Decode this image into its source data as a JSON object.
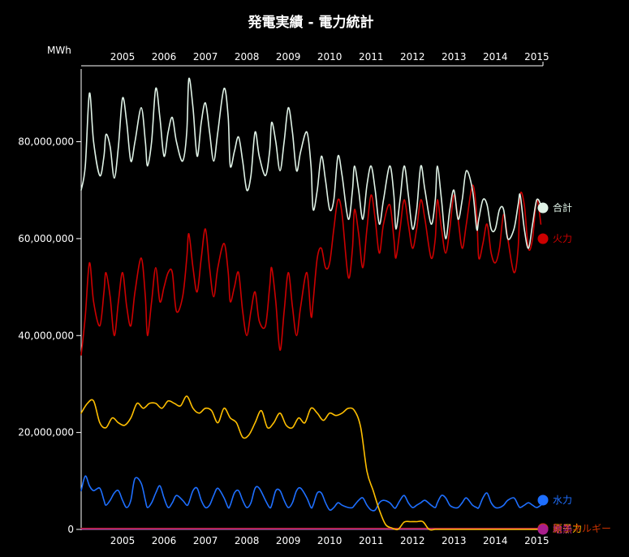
{
  "chart_data": {
    "type": "line",
    "title": "発電実績 - 電力統計",
    "ylabel": "MWh",
    "xlabel": "",
    "xlim": [
      2004.0,
      2015.15
    ],
    "ylim": [
      0,
      95000000
    ],
    "x_ticks": [
      "2005",
      "2006",
      "2007",
      "2008",
      "2009",
      "2010",
      "2011",
      "2012",
      "2013",
      "2014",
      "2015"
    ],
    "y_ticks": [
      "0",
      "20,000,000",
      "40,000,000",
      "60,000,000",
      "80,000,000"
    ],
    "y_tick_values": [
      0,
      20000000,
      40000000,
      60000000,
      80000000
    ],
    "grid": false,
    "legend_placement": "right-end",
    "series": [
      {
        "name": "合計",
        "color": "#dff2e6",
        "x": [
          2004.0,
          2004.1,
          2004.2,
          2004.3,
          2004.45,
          2004.55,
          2004.6,
          2004.7,
          2004.8,
          2004.9,
          2005.0,
          2005.1,
          2005.2,
          2005.3,
          2005.45,
          2005.55,
          2005.6,
          2005.7,
          2005.8,
          2005.9,
          2006.0,
          2006.1,
          2006.2,
          2006.3,
          2006.45,
          2006.55,
          2006.6,
          2006.7,
          2006.8,
          2006.9,
          2007.0,
          2007.1,
          2007.2,
          2007.3,
          2007.45,
          2007.55,
          2007.6,
          2007.7,
          2007.8,
          2007.9,
          2008.0,
          2008.1,
          2008.2,
          2008.3,
          2008.45,
          2008.55,
          2008.6,
          2008.7,
          2008.8,
          2008.9,
          2009.0,
          2009.1,
          2009.2,
          2009.3,
          2009.45,
          2009.55,
          2009.6,
          2009.7,
          2009.8,
          2009.9,
          2010.0,
          2010.1,
          2010.2,
          2010.3,
          2010.45,
          2010.55,
          2010.6,
          2010.7,
          2010.8,
          2010.9,
          2011.0,
          2011.1,
          2011.2,
          2011.3,
          2011.45,
          2011.55,
          2011.6,
          2011.7,
          2011.8,
          2011.9,
          2012.0,
          2012.1,
          2012.2,
          2012.3,
          2012.45,
          2012.55,
          2012.6,
          2012.7,
          2012.8,
          2012.9,
          2013.0,
          2013.1,
          2013.2,
          2013.3,
          2013.45,
          2013.55,
          2013.6,
          2013.7,
          2013.8,
          2013.9,
          2014.0,
          2014.1,
          2014.2,
          2014.3,
          2014.45,
          2014.55,
          2014.6,
          2014.7,
          2014.8,
          2014.9,
          2015.0,
          2015.1
        ],
        "values": [
          70000000,
          75000000,
          90000000,
          80000000,
          73000000,
          77000000,
          81500000,
          79000000,
          72500000,
          79000000,
          89000000,
          84000000,
          76000000,
          80000000,
          87000000,
          80000000,
          75000000,
          80000000,
          91000000,
          85000000,
          77000000,
          82000000,
          85000000,
          80000000,
          76000000,
          82000000,
          93000000,
          87000000,
          77000000,
          84000000,
          88000000,
          82000000,
          76000000,
          82000000,
          91000000,
          85000000,
          75000000,
          78000000,
          81000000,
          76000000,
          70000000,
          73000000,
          82000000,
          77000000,
          73000000,
          78000000,
          84000000,
          80000000,
          74000000,
          80000000,
          87000000,
          82000000,
          74000000,
          78000000,
          82000000,
          75000000,
          66000000,
          70000000,
          77000000,
          72000000,
          66000000,
          68000000,
          77000000,
          73000000,
          64000000,
          70000000,
          75000000,
          70000000,
          64000000,
          71000000,
          75000000,
          70000000,
          63000000,
          68000000,
          75000000,
          69000000,
          62000000,
          68000000,
          75000000,
          69000000,
          62000000,
          66000000,
          75000000,
          70000000,
          63000000,
          68000000,
          75000000,
          68000000,
          60000000,
          66000000,
          70000000,
          64000000,
          68000000,
          74000000,
          70000000,
          62000000,
          64000000,
          68000000,
          67000000,
          62000000,
          62000000,
          66000000,
          66000000,
          60000000,
          62000000,
          67000000,
          69000000,
          62000000,
          58000000,
          63000000,
          68000000,
          67000000
        ]
      },
      {
        "name": "火力",
        "color": "#cc0000",
        "x": [
          2004.0,
          2004.1,
          2004.2,
          2004.3,
          2004.45,
          2004.55,
          2004.6,
          2004.7,
          2004.8,
          2004.9,
          2005.0,
          2005.1,
          2005.2,
          2005.3,
          2005.45,
          2005.55,
          2005.6,
          2005.7,
          2005.8,
          2005.9,
          2006.0,
          2006.1,
          2006.2,
          2006.3,
          2006.45,
          2006.55,
          2006.6,
          2006.7,
          2006.8,
          2006.9,
          2007.0,
          2007.1,
          2007.2,
          2007.3,
          2007.45,
          2007.55,
          2007.6,
          2007.7,
          2007.8,
          2007.9,
          2008.0,
          2008.1,
          2008.2,
          2008.3,
          2008.45,
          2008.55,
          2008.6,
          2008.7,
          2008.8,
          2008.9,
          2009.0,
          2009.1,
          2009.2,
          2009.3,
          2009.45,
          2009.55,
          2009.6,
          2009.7,
          2009.8,
          2009.9,
          2010.0,
          2010.1,
          2010.2,
          2010.3,
          2010.45,
          2010.55,
          2010.6,
          2010.7,
          2010.8,
          2010.9,
          2011.0,
          2011.1,
          2011.2,
          2011.3,
          2011.45,
          2011.55,
          2011.6,
          2011.7,
          2011.8,
          2011.9,
          2012.0,
          2012.1,
          2012.2,
          2012.3,
          2012.45,
          2012.55,
          2012.6,
          2012.7,
          2012.8,
          2012.9,
          2013.0,
          2013.1,
          2013.2,
          2013.3,
          2013.45,
          2013.55,
          2013.6,
          2013.7,
          2013.8,
          2013.9,
          2014.0,
          2014.1,
          2014.2,
          2014.3,
          2014.45,
          2014.55,
          2014.6,
          2014.7,
          2014.8,
          2014.9,
          2015.0,
          2015.1
        ],
        "values": [
          36000000,
          44000000,
          55000000,
          47000000,
          42000000,
          49000000,
          53000000,
          48000000,
          40000000,
          47000000,
          53000000,
          46000000,
          42000000,
          49000000,
          56000000,
          48000000,
          40000000,
          47000000,
          54000000,
          47000000,
          50000000,
          53000000,
          53000000,
          45000000,
          48000000,
          56000000,
          61000000,
          54000000,
          49000000,
          56000000,
          62000000,
          54000000,
          48000000,
          54000000,
          59000000,
          53000000,
          47000000,
          50000000,
          53000000,
          45000000,
          40000000,
          45000000,
          49000000,
          43000000,
          42000000,
          50000000,
          54000000,
          47000000,
          37000000,
          45000000,
          53000000,
          46000000,
          40000000,
          46000000,
          53000000,
          44000000,
          47000000,
          56000000,
          58000000,
          54000000,
          55000000,
          62000000,
          68000000,
          65000000,
          52000000,
          58000000,
          66000000,
          61000000,
          54000000,
          62000000,
          69000000,
          64000000,
          57000000,
          63000000,
          67000000,
          60000000,
          56000000,
          62000000,
          68000000,
          63000000,
          58000000,
          62000000,
          68000000,
          64000000,
          56000000,
          60000000,
          68000000,
          62000000,
          57000000,
          62000000,
          69000000,
          64000000,
          58000000,
          63000000,
          71000000,
          65000000,
          56000000,
          59000000,
          63000000,
          57000000,
          55000000,
          58000000,
          65000000,
          60000000,
          53000000,
          58000000,
          69000000,
          67000000,
          58000000,
          60000000,
          68000000,
          63000000
        ]
      },
      {
        "name": "原子力",
        "color": "#ffbf00",
        "x": [
          2004.0,
          2004.15,
          2004.3,
          2004.45,
          2004.6,
          2004.75,
          2004.9,
          2005.05,
          2005.2,
          2005.35,
          2005.5,
          2005.65,
          2005.8,
          2005.95,
          2006.1,
          2006.25,
          2006.4,
          2006.55,
          2006.7,
          2006.85,
          2007.0,
          2007.15,
          2007.3,
          2007.45,
          2007.6,
          2007.75,
          2007.9,
          2008.05,
          2008.2,
          2008.35,
          2008.5,
          2008.65,
          2008.8,
          2008.95,
          2009.1,
          2009.25,
          2009.4,
          2009.55,
          2009.7,
          2009.85,
          2010.0,
          2010.15,
          2010.3,
          2010.45,
          2010.6,
          2010.75,
          2010.9,
          2011.05,
          2011.2,
          2011.35,
          2011.5,
          2011.65,
          2011.8,
          2011.95,
          2012.1,
          2012.25,
          2012.4,
          2012.55,
          2012.7,
          2012.85,
          2013.0,
          2013.15,
          2013.3,
          2013.45,
          2013.6,
          2013.75,
          2013.9,
          2014.05,
          2014.2,
          2014.35,
          2014.5,
          2014.65,
          2014.8,
          2014.95,
          2015.1
        ],
        "values": [
          24000000,
          26000000,
          26500000,
          22000000,
          21000000,
          23000000,
          22000000,
          21500000,
          23000000,
          26000000,
          25000000,
          26000000,
          26000000,
          25000000,
          26500000,
          26000000,
          25500000,
          27500000,
          25000000,
          24000000,
          25000000,
          24500000,
          22000000,
          25000000,
          23000000,
          22000000,
          19000000,
          19500000,
          22000000,
          24500000,
          21000000,
          22000000,
          24000000,
          21500000,
          21000000,
          23000000,
          22000000,
          25000000,
          24000000,
          22500000,
          24000000,
          23500000,
          24000000,
          25000000,
          24500000,
          21000000,
          12000000,
          8000000,
          4000000,
          1000000,
          300000,
          0,
          1500000,
          1600000,
          1600000,
          1600000,
          0,
          0,
          0,
          0,
          0,
          0,
          0,
          0,
          0,
          0,
          0,
          0,
          0,
          0,
          0,
          0,
          0,
          0,
          0
        ]
      },
      {
        "name": "水力",
        "color": "#1e6fff",
        "x": [
          2004.0,
          2004.1,
          2004.2,
          2004.3,
          2004.45,
          2004.55,
          2004.6,
          2004.7,
          2004.8,
          2004.9,
          2005.0,
          2005.1,
          2005.2,
          2005.3,
          2005.45,
          2005.55,
          2005.6,
          2005.7,
          2005.8,
          2005.9,
          2006.0,
          2006.1,
          2006.2,
          2006.3,
          2006.45,
          2006.55,
          2006.6,
          2006.7,
          2006.8,
          2006.9,
          2007.0,
          2007.1,
          2007.2,
          2007.3,
          2007.45,
          2007.55,
          2007.6,
          2007.7,
          2007.8,
          2007.9,
          2008.0,
          2008.1,
          2008.2,
          2008.3,
          2008.45,
          2008.55,
          2008.6,
          2008.7,
          2008.8,
          2008.9,
          2009.0,
          2009.1,
          2009.2,
          2009.3,
          2009.45,
          2009.55,
          2009.6,
          2009.7,
          2009.8,
          2009.9,
          2010.0,
          2010.1,
          2010.2,
          2010.3,
          2010.45,
          2010.55,
          2010.6,
          2010.7,
          2010.8,
          2010.9,
          2011.0,
          2011.1,
          2011.2,
          2011.3,
          2011.45,
          2011.55,
          2011.6,
          2011.7,
          2011.8,
          2011.9,
          2012.0,
          2012.1,
          2012.2,
          2012.3,
          2012.45,
          2012.55,
          2012.6,
          2012.7,
          2012.8,
          2012.9,
          2013.0,
          2013.1,
          2013.2,
          2013.3,
          2013.45,
          2013.55,
          2013.6,
          2013.7,
          2013.8,
          2013.9,
          2014.0,
          2014.1,
          2014.2,
          2014.3,
          2014.45,
          2014.55,
          2014.6,
          2014.7,
          2014.8,
          2014.9,
          2015.0,
          2015.1
        ],
        "values": [
          8000000,
          11000000,
          9000000,
          8000000,
          8500000,
          6000000,
          5000000,
          6000000,
          7500000,
          8000000,
          6000000,
          4500000,
          6000000,
          10500000,
          9500000,
          6000000,
          4500000,
          5500000,
          7500000,
          9000000,
          6500000,
          4500000,
          5500000,
          7000000,
          6000000,
          5000000,
          5500000,
          8000000,
          8500000,
          6000000,
          4500000,
          5000000,
          7000000,
          8500000,
          6500000,
          4500000,
          5000000,
          7500000,
          8000000,
          6000000,
          4500000,
          5500000,
          8500000,
          8500000,
          6000000,
          4500000,
          5000000,
          8000000,
          8000000,
          6000000,
          4500000,
          5500000,
          8000000,
          8500000,
          6500000,
          4500000,
          5000000,
          7500000,
          7500000,
          5500000,
          4000000,
          4500000,
          5500000,
          5000000,
          4500000,
          4500000,
          5000000,
          6000000,
          6500000,
          5000000,
          4000000,
          4000000,
          5500000,
          6000000,
          5500000,
          4500000,
          4500000,
          6000000,
          7000000,
          5500000,
          4500000,
          5000000,
          5500000,
          6000000,
          5000000,
          4500000,
          5500000,
          7000000,
          6500000,
          5000000,
          4500000,
          4500000,
          5500000,
          6500000,
          5000000,
          4500000,
          4500000,
          6500000,
          7500000,
          5500000,
          4500000,
          4500000,
          5000000,
          6000000,
          6500000,
          5000000,
          4500000,
          5000000,
          5500000,
          5000000,
          4500000,
          5000000
        ]
      },
      {
        "name": "新エネルギー",
        "color": "#cc3300",
        "x": [
          2004.0,
          2015.1
        ],
        "values": [
          200000,
          200000
        ]
      },
      {
        "name": "地熱",
        "color": "#aa1e8c",
        "x": [
          2004.0,
          2015.1
        ],
        "values": [
          100000,
          100000
        ]
      }
    ]
  }
}
